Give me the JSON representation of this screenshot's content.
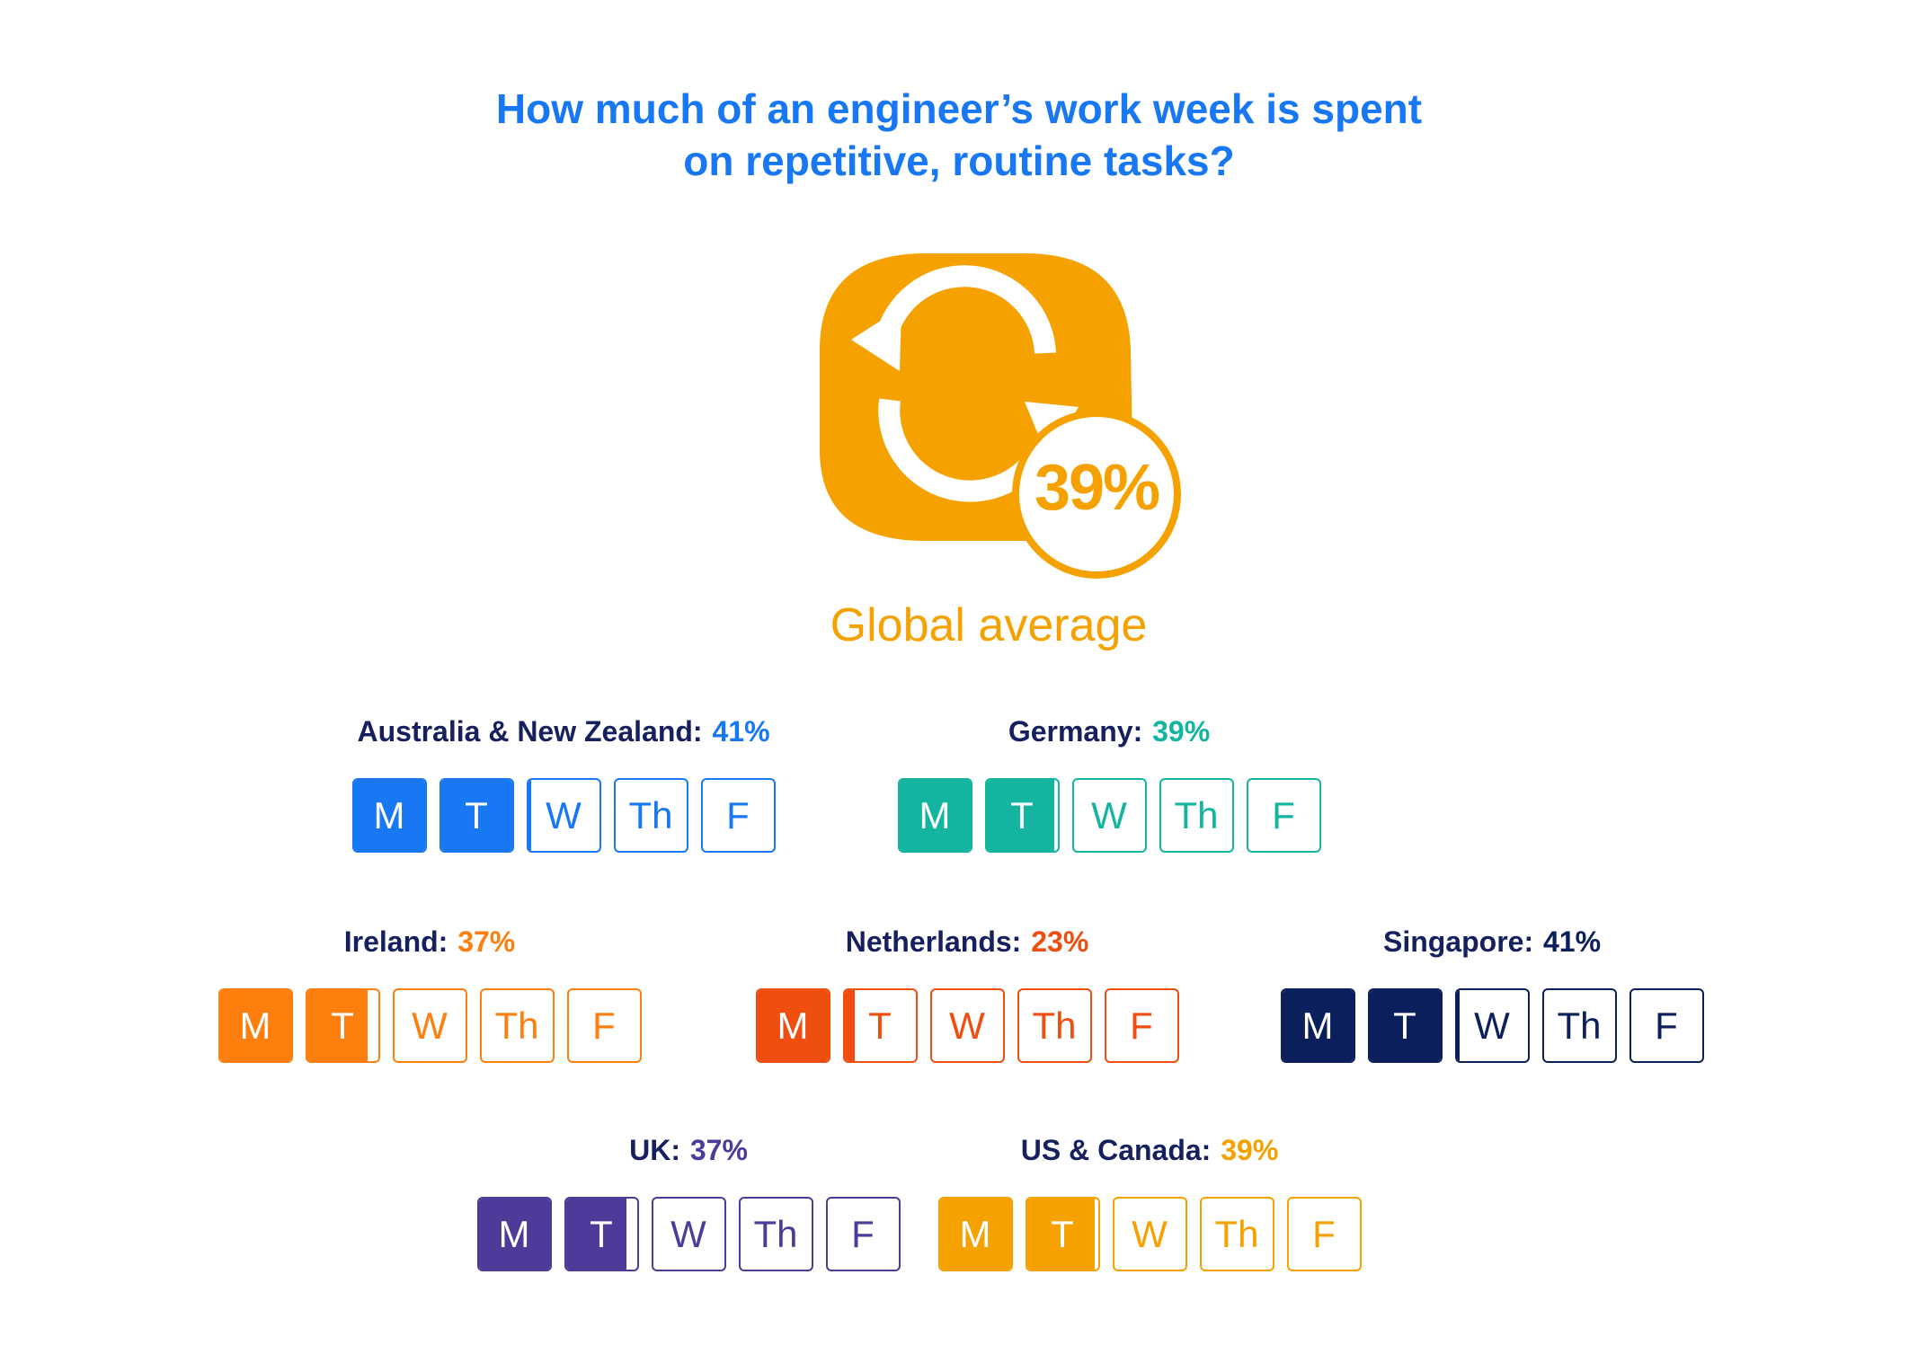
{
  "header": {
    "title_line1": "How much of an engineer’s work week is spent",
    "title_line2": "on repetitive, routine tasks?"
  },
  "global": {
    "value": "39%",
    "label": "Global average",
    "icon": "refresh-icon",
    "color": "#f5a100"
  },
  "day_labels": [
    "M",
    "T",
    "W",
    "Th",
    "F"
  ],
  "countries": [
    {
      "name": "Australia & New Zealand:",
      "value": "41%",
      "share": 0.41,
      "color": "#1877f2",
      "value_color": "#1877f2"
    },
    {
      "name": "Germany:",
      "value": "39%",
      "share": 0.39,
      "color": "#14b5a0",
      "value_color": "#14b5a0"
    },
    {
      "name": "Ireland:",
      "value": "37%",
      "share": 0.37,
      "color": "#ff7f0e",
      "value_color": "#ff7f0e"
    },
    {
      "name": "Netherlands:",
      "value": "23%",
      "share": 0.23,
      "color": "#f04e0f",
      "value_color": "#f04e0f"
    },
    {
      "name": "Singapore:",
      "value": "41%",
      "share": 0.41,
      "color": "#0b1f5c",
      "value_color": "#0b1f5c"
    },
    {
      "name": "UK:",
      "value": "37%",
      "share": 0.37,
      "color": "#4e3a98",
      "value_color": "#4e3a98"
    },
    {
      "name": "US & Canada:",
      "value": "39%",
      "share": 0.39,
      "color": "#f5a100",
      "value_color": "#f5a100"
    }
  ]
}
